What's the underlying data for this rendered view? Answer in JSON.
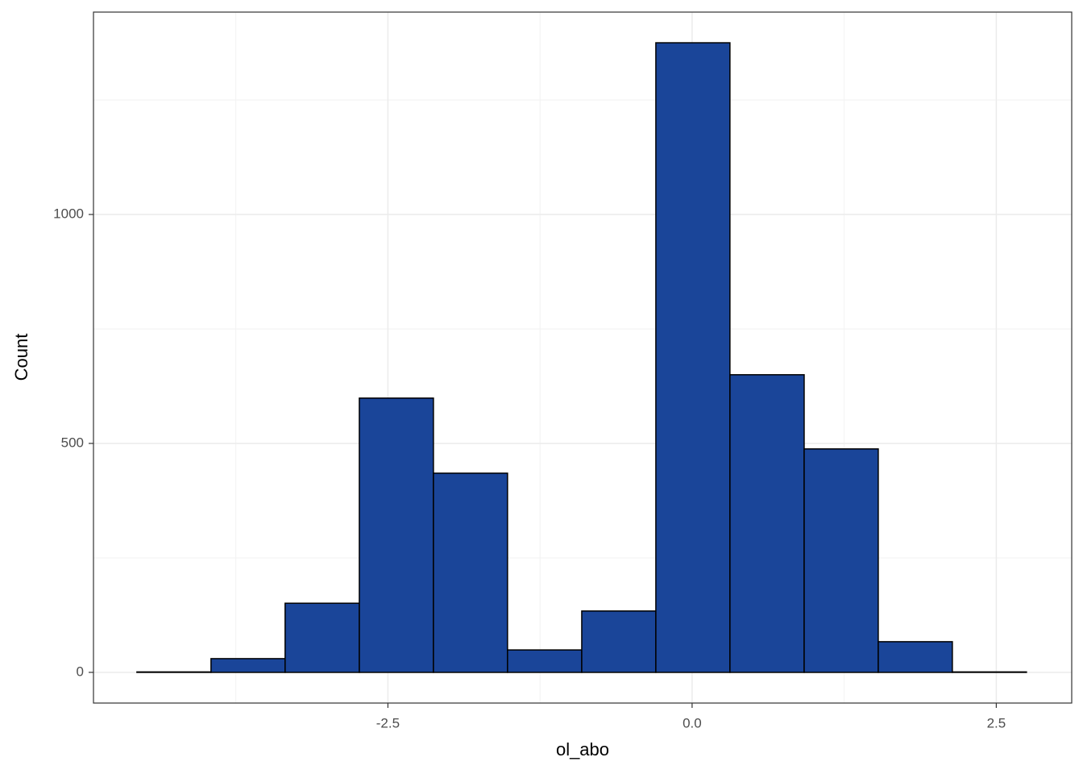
{
  "chart_data": {
    "type": "histogram",
    "x_label": "ol_abo",
    "y_label": "Count",
    "bins": [
      -4.563,
      -3.954,
      -3.345,
      -2.735,
      -2.126,
      -1.517,
      -0.907,
      -0.298,
      0.311,
      0.921,
      1.53,
      2.139,
      2.748
    ],
    "values": [
      1,
      30,
      151,
      599,
      435,
      49,
      134,
      1375,
      650,
      488,
      67,
      1
    ],
    "color": "#1a4599",
    "edge_color": "#000000",
    "xlim": [
      -4.92,
      3.12
    ],
    "ylim": [
      -67,
      1442
    ],
    "xticks": [
      {
        "value": -2.5,
        "label": "-2.5"
      },
      {
        "value": 0,
        "label": "0.0"
      },
      {
        "value": 2.5,
        "label": "2.5"
      }
    ],
    "yticks": [
      0,
      500,
      1000
    ],
    "x_minor_ticks": [
      -3.75,
      -1.25,
      1.25
    ],
    "y_minor_ticks": [
      250,
      750,
      1250
    ],
    "grid": true
  }
}
